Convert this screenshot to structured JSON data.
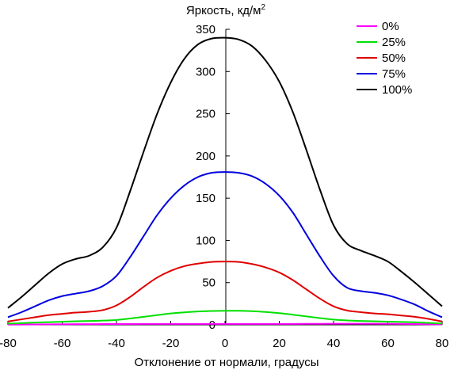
{
  "chart_data": {
    "type": "line",
    "ylabel": "Яркость, кд/м",
    "ylabel_superscript": "2",
    "xlabel": "Отклонение от нормали, градусы",
    "xlim": [
      -80,
      80
    ],
    "ylim": [
      0,
      350
    ],
    "x_ticks": [
      -80,
      -60,
      -40,
      -20,
      0,
      20,
      40,
      60,
      80
    ],
    "x_tick_labels": [
      "-80",
      "-60",
      "-40",
      "-20",
      "0",
      "20",
      "40",
      "60",
      "80"
    ],
    "y_ticks": [
      0,
      50,
      100,
      150,
      200,
      250,
      300,
      350
    ],
    "y_tick_labels": [
      "0",
      "50",
      "100",
      "150",
      "200",
      "250",
      "300",
      "350"
    ],
    "grid": false,
    "legend_position": "top-right",
    "x": [
      -80,
      -75,
      -70,
      -65,
      -60,
      -55,
      -50,
      -45,
      -40,
      -35,
      -30,
      -25,
      -20,
      -15,
      -10,
      -5,
      0,
      5,
      10,
      15,
      20,
      25,
      30,
      35,
      40,
      45,
      50,
      55,
      60,
      65,
      70,
      75,
      80
    ],
    "series": [
      {
        "name": "0%",
        "color": "#ff00ff",
        "values": [
          0.3,
          0.4,
          0.5,
          0.6,
          0.7,
          0.8,
          0.8,
          0.9,
          0.9,
          0.9,
          1.0,
          1.0,
          1.0,
          1.0,
          1.0,
          1.0,
          1.0,
          1.0,
          1.0,
          1.1,
          1.1,
          1.1,
          1.2,
          1.2,
          1.3,
          1.3,
          1.3,
          1.3,
          1.2,
          1.1,
          0.9,
          0.7,
          0.5
        ]
      },
      {
        "name": "25%",
        "color": "#00e000",
        "values": [
          1.5,
          2.0,
          2.7,
          3.2,
          3.7,
          4.2,
          4.6,
          5.0,
          5.8,
          7.5,
          9.5,
          11.5,
          13.5,
          14.8,
          15.8,
          16.4,
          16.7,
          16.6,
          16.2,
          15.2,
          13.8,
          12.0,
          10.0,
          8.0,
          6.2,
          5.2,
          4.6,
          4.2,
          3.8,
          3.4,
          3.0,
          2.3,
          1.5
        ]
      },
      {
        "name": "50%",
        "color": "#e00000",
        "values": [
          4.0,
          6.5,
          9.0,
          11.5,
          13.0,
          14.5,
          15.5,
          17.5,
          23.0,
          33.0,
          45.0,
          56.0,
          64.0,
          69.5,
          72.5,
          74.5,
          75.0,
          74.5,
          72.0,
          68.0,
          62.0,
          53.0,
          42.0,
          31.0,
          22.0,
          17.0,
          15.0,
          13.5,
          12.5,
          11.0,
          9.5,
          7.0,
          4.0
        ]
      },
      {
        "name": "75%",
        "color": "#0000e0",
        "values": [
          9.0,
          15.0,
          22.0,
          29.0,
          34.0,
          37.0,
          40.0,
          46.0,
          58.0,
          80.0,
          105.0,
          130.0,
          150.0,
          165.0,
          175.0,
          180.0,
          181.0,
          180.0,
          176.0,
          167.0,
          153.0,
          133.0,
          107.0,
          81.0,
          58.0,
          44.0,
          40.0,
          38.0,
          35.0,
          30.0,
          24.0,
          16.0,
          9.0
        ]
      },
      {
        "name": "100%",
        "color": "#000000",
        "values": [
          20.0,
          33.0,
          47.0,
          61.0,
          72.0,
          78.0,
          82.0,
          92.0,
          115.0,
          158.0,
          205.0,
          250.0,
          287.0,
          315.0,
          332.0,
          339.0,
          340.0,
          338.0,
          330.0,
          313.0,
          288.0,
          252.0,
          207.0,
          160.0,
          118.0,
          96.0,
          88.0,
          82.0,
          75.0,
          63.0,
          50.0,
          36.0,
          22.0
        ]
      }
    ]
  }
}
